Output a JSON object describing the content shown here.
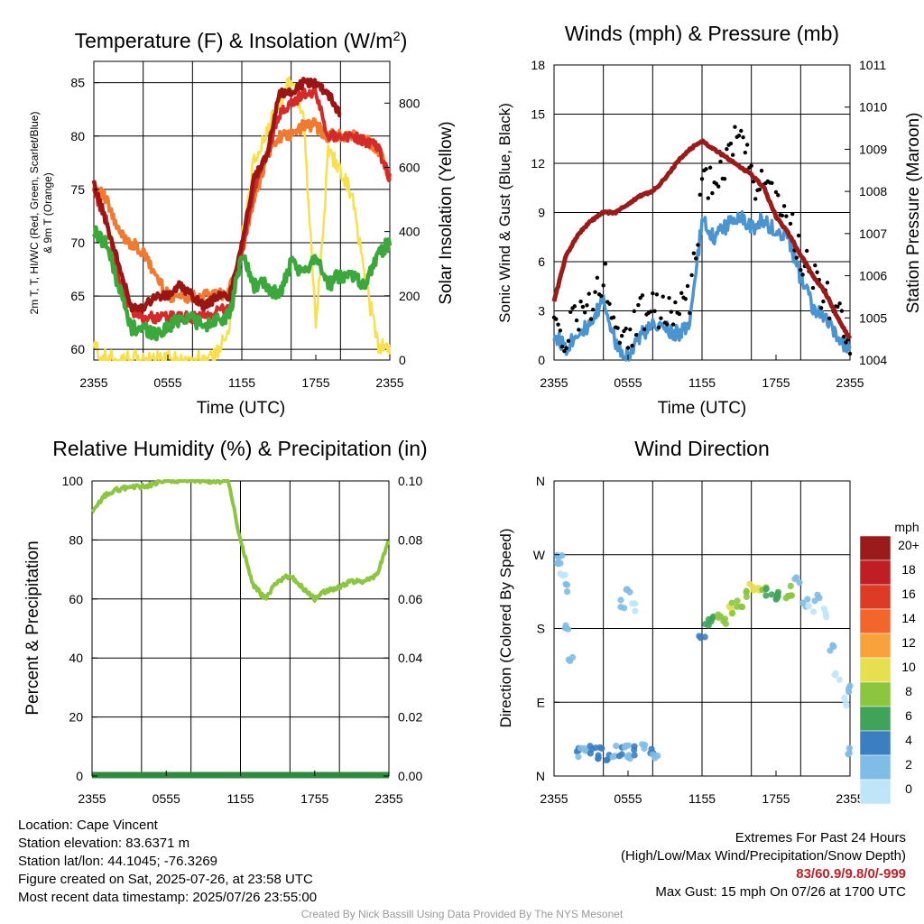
{
  "panels": {
    "temp": {
      "title": "Temperature (F) & Insolation (W/m",
      "title_sup": "2",
      "title_end": ")",
      "ylabel_line1": "2m T, T, HI/WC (Red, Green, Scarlet/Blue)",
      "ylabel_line2": "& 9m T (Orange)",
      "y2label": "Solar Insolation (Yellow)",
      "xlabel": "Time (UTC)"
    },
    "wind": {
      "title": "Winds (mph) & Pressure (mb)",
      "ylabel": "Sonic Wind & Gust (Blue, Black)",
      "y2label": "Station Pressure (Maroon)",
      "xlabel": "Time (UTC)"
    },
    "rh": {
      "title": "Relative Humidity (%) & Precipitation (in)",
      "ylabel": "Percent & Precipitation"
    },
    "dir": {
      "title": "Wind Direction",
      "ylabel": "Direction (Colored By Speed)",
      "legend_title": "mph"
    }
  },
  "info": {
    "location": "Location: Cape Vincent",
    "elevation": "Station elevation: 83.6371 m",
    "latlon": "Station lat/lon: 44.1045; -76.3269",
    "created": "Figure created on Sat, 2025-07-26, at 23:58 UTC",
    "recent": "Most recent data timestamp: 2025/07/26 23:55:00",
    "extremes_title": "Extremes For Past 24 Hours",
    "extremes_subtitle": "(High/Low/Max Wind/Precipitation/Snow Depth)",
    "extremes_values": "83/60.9/9.8/0/-999",
    "max_gust": "Max Gust: 15 mph On 07/26 at 1700 UTC",
    "credit": "Created By Nick Bassill Using Data Provided By The NYS Mesonet"
  },
  "colors": {
    "temp2m": "#9b1515",
    "temp9m": "#f07a30",
    "dewpoint": "#3aa83a",
    "heatindex": "#d42a2a",
    "solar": "#f8e04a",
    "wind": "#4a94d0",
    "gust": "#000000",
    "pressure": "#9b1b1b",
    "rh": "#8cc63f",
    "precip": "#2e8b3e"
  },
  "speed_legend": [
    {
      "label": "20+",
      "color": "#9b1b1b"
    },
    {
      "label": "18",
      "color": "#be1e24"
    },
    {
      "label": "16",
      "color": "#de3b27"
    },
    {
      "label": "14",
      "color": "#f2662b"
    },
    {
      "label": "12",
      "color": "#f9a23b"
    },
    {
      "label": "10",
      "color": "#e6df4f"
    },
    {
      "label": "8",
      "color": "#8cc63f"
    },
    {
      "label": "6",
      "color": "#3fa35a"
    },
    {
      "label": "4",
      "color": "#3a7fc1"
    },
    {
      "label": "2",
      "color": "#7fbde6"
    },
    {
      "label": "0",
      "color": "#bfe6f8"
    }
  ],
  "chart_data": [
    {
      "type": "line",
      "title": "Temperature (F) & Insolation (W/m2)",
      "xlabel": "Time (UTC)",
      "ylabel": "2m T, Td, HI/WC (Red, Green, Scarlet/Blue) & 9m T (Orange)",
      "y2label": "Solar Insolation (Yellow)",
      "x_ticks": [
        "2355",
        "0555",
        "1155",
        "1755",
        "2355"
      ],
      "x_hours": [
        0,
        2,
        4,
        6,
        8,
        10,
        12,
        14,
        16,
        18,
        20,
        22,
        24
      ],
      "ylim": [
        59,
        87
      ],
      "y_ticks": [
        60,
        65,
        70,
        75,
        80,
        85
      ],
      "y2lim": [
        0,
        930
      ],
      "y2_ticks": [
        0,
        200,
        400,
        600,
        800
      ],
      "series": [
        {
          "name": "2m T",
          "x": [
            0,
            1,
            2,
            3,
            4,
            5,
            6,
            7,
            8,
            9,
            10,
            11,
            12,
            13,
            14,
            15,
            16,
            17,
            18,
            19,
            20,
            21,
            22,
            23,
            24
          ],
          "values": [
            75.5,
            72,
            68,
            64,
            64,
            65,
            65,
            66,
            65,
            64,
            65,
            65,
            70,
            76,
            78,
            84,
            84,
            85,
            85,
            84,
            82,
            null,
            null,
            null,
            null
          ]
        },
        {
          "name": "9m T",
          "x": [
            0,
            1,
            2,
            3,
            4,
            5,
            6,
            7,
            8,
            9,
            10,
            11,
            12,
            13,
            14,
            15,
            16,
            17,
            18,
            19,
            20,
            21,
            22,
            23,
            24
          ],
          "values": [
            75.5,
            74,
            71,
            70,
            69,
            67,
            65,
            65,
            65,
            65,
            65,
            65.5,
            69,
            74,
            78,
            80,
            80,
            81,
            81,
            80,
            80,
            80,
            79.5,
            79,
            76
          ]
        },
        {
          "name": "Heat Index",
          "x": [
            0,
            1,
            2,
            3,
            4,
            5,
            6,
            7,
            8,
            9,
            10,
            11,
            12,
            13,
            14,
            15,
            16,
            17,
            18,
            19,
            20,
            21,
            22,
            23,
            24
          ],
          "values": [
            75,
            72,
            67,
            63.5,
            63,
            63,
            63,
            63,
            63,
            63,
            63.5,
            64,
            69,
            75,
            78,
            82,
            83,
            84,
            84,
            80,
            80,
            80,
            79.5,
            79,
            76
          ]
        },
        {
          "name": "Dewpoint",
          "x": [
            0,
            1,
            2,
            3,
            4,
            5,
            6,
            7,
            8,
            9,
            10,
            11,
            12,
            13,
            14,
            15,
            16,
            17,
            18,
            19,
            20,
            21,
            22,
            23,
            24
          ],
          "values": [
            71,
            70,
            66,
            62,
            62,
            61.5,
            62,
            63,
            63,
            62,
            63,
            63,
            69,
            66,
            66,
            65,
            68,
            67,
            69,
            66,
            67,
            67,
            66,
            69,
            70
          ]
        },
        {
          "name": "Solar",
          "axis": "y2",
          "x": [
            0,
            1,
            2,
            3,
            4,
            5,
            6,
            7,
            8,
            9,
            10,
            11,
            12,
            13,
            14,
            15,
            16,
            17,
            18,
            19,
            20,
            21,
            22,
            23,
            24
          ],
          "values": [
            40,
            0,
            0,
            0,
            0,
            0,
            0,
            0,
            0,
            0,
            20,
            120,
            370,
            620,
            700,
            800,
            880,
            760,
            100,
            640,
            600,
            500,
            250,
            50,
            30
          ]
        }
      ]
    },
    {
      "type": "line",
      "title": "Winds (mph) & Pressure (mb)",
      "xlabel": "Time (UTC)",
      "ylabel": "Sonic Wind & Gust (Blue, Black)",
      "y2label": "Station Pressure (Maroon)",
      "x_ticks": [
        "2355",
        "0555",
        "1155",
        "1755",
        "2355"
      ],
      "ylim": [
        0,
        18
      ],
      "y_ticks": [
        0,
        3,
        6,
        9,
        12,
        15,
        18
      ],
      "y2lim": [
        1004,
        1011
      ],
      "y2_ticks": [
        1004,
        1005,
        1006,
        1007,
        1008,
        1009,
        1010,
        1011
      ],
      "series": [
        {
          "name": "Wind",
          "x": [
            0,
            1,
            2,
            3,
            4,
            5,
            6,
            7,
            8,
            9,
            10,
            11,
            12,
            13,
            14,
            15,
            16,
            17,
            18,
            19,
            20,
            21,
            22,
            23,
            24
          ],
          "values": [
            1.5,
            0.8,
            1.8,
            2.0,
            3.8,
            1.0,
            0.3,
            1.5,
            2.0,
            2.0,
            1.6,
            2.0,
            8.5,
            7.5,
            8.2,
            8.8,
            8.0,
            8.6,
            7.8,
            7.5,
            5.0,
            3.2,
            2.5,
            1.2,
            0.6
          ]
        },
        {
          "name": "Gust",
          "x": [
            0,
            1,
            2,
            3,
            4,
            5,
            6,
            7,
            8,
            9,
            10,
            11,
            12,
            13,
            14,
            15,
            16,
            17,
            18,
            19,
            20,
            21,
            22,
            23,
            24
          ],
          "values": [
            2.5,
            1.5,
            2.8,
            3.5,
            5.3,
            2.0,
            1.0,
            2.8,
            3.0,
            3.0,
            2.8,
            3.5,
            10.5,
            11.5,
            12.0,
            14.5,
            11.0,
            10.5,
            10.0,
            8.5,
            6.5,
            5.0,
            4.0,
            2.5,
            1.2
          ]
        },
        {
          "name": "Pressure",
          "axis": "y2",
          "x": [
            0,
            1,
            2,
            3,
            4,
            5,
            6,
            7,
            8,
            9,
            10,
            11,
            12,
            13,
            14,
            15,
            16,
            17,
            18,
            19,
            20,
            21,
            22,
            23,
            24
          ],
          "values": [
            1005.4,
            1006.5,
            1007.0,
            1007.3,
            1007.5,
            1007.5,
            1007.7,
            1007.9,
            1008.0,
            1008.3,
            1008.7,
            1009.0,
            1009.2,
            1009.0,
            1008.8,
            1008.6,
            1008.4,
            1008.1,
            1007.4,
            1007.0,
            1006.5,
            1006.0,
            1005.6,
            1005.0,
            1004.5
          ]
        }
      ]
    },
    {
      "type": "line",
      "title": "Relative Humidity (%) & Precipitation (in)",
      "ylabel": "Percent & Precipitation",
      "x_ticks": [
        "2355",
        "0555",
        "1155",
        "1755",
        "2355"
      ],
      "ylim": [
        0,
        100
      ],
      "y_ticks": [
        0,
        20,
        40,
        60,
        80,
        100
      ],
      "y2lim": [
        0,
        0.1
      ],
      "y2_ticks": [
        "0.00",
        "0.02",
        "0.04",
        "0.06",
        "0.08",
        "0.10"
      ],
      "series": [
        {
          "name": "RH",
          "x": [
            0,
            1,
            2,
            3,
            4,
            5,
            6,
            7,
            8,
            9,
            10,
            11,
            12,
            13,
            14,
            15,
            16,
            17,
            18,
            19,
            20,
            21,
            22,
            23,
            24
          ],
          "values": [
            89,
            95,
            97,
            98,
            98,
            99,
            100,
            100,
            100,
            100,
            100,
            100,
            80,
            65,
            60,
            66,
            68,
            64,
            60,
            63,
            64,
            66,
            66,
            68,
            80
          ]
        },
        {
          "name": "Precipitation",
          "axis": "y2",
          "x": [
            0,
            24
          ],
          "values": [
            0,
            0
          ]
        }
      ]
    },
    {
      "type": "scatter",
      "title": "Wind Direction",
      "ylabel": "Direction (Colored By Speed)",
      "x_ticks": [
        "2355",
        "0555",
        "1155",
        "1755",
        "2355"
      ],
      "y_ticks": [
        "N",
        "E",
        "S",
        "W",
        "N"
      ],
      "ylim": [
        0,
        360
      ],
      "legend": "right",
      "points_hour_deg_speed": [
        [
          0.4,
          270,
          1
        ],
        [
          0.5,
          260,
          1
        ],
        [
          0.7,
          240,
          0
        ],
        [
          0.9,
          230,
          1
        ],
        [
          1.1,
          185,
          2
        ],
        [
          1.3,
          140,
          1
        ],
        [
          2.0,
          35,
          4
        ],
        [
          2.2,
          30,
          2
        ],
        [
          2.6,
          25,
          2
        ],
        [
          3.0,
          30,
          3
        ],
        [
          3.4,
          28,
          4
        ],
        [
          3.8,
          30,
          3
        ],
        [
          4.4,
          25,
          4
        ],
        [
          4.8,
          30,
          2
        ],
        [
          5.3,
          28,
          4
        ],
        [
          5.8,
          32,
          1
        ],
        [
          6.2,
          25,
          2
        ],
        [
          6.7,
          30,
          3
        ],
        [
          7.3,
          35,
          2
        ],
        [
          7.8,
          30,
          3
        ],
        [
          8.2,
          28,
          1
        ],
        [
          5.6,
          210,
          1
        ],
        [
          5.9,
          230,
          1
        ],
        [
          6.4,
          205,
          0
        ],
        [
          12.0,
          175,
          3
        ],
        [
          12.4,
          185,
          5
        ],
        [
          12.8,
          190,
          6
        ],
        [
          13.3,
          195,
          7
        ],
        [
          13.8,
          190,
          8
        ],
        [
          14.2,
          200,
          9
        ],
        [
          14.6,
          205,
          7
        ],
        [
          15.1,
          210,
          8
        ],
        [
          15.6,
          225,
          8
        ],
        [
          16.1,
          228,
          10
        ],
        [
          16.5,
          226,
          9
        ],
        [
          17.0,
          224,
          7
        ],
        [
          17.4,
          225,
          6
        ],
        [
          17.9,
          222,
          6
        ],
        [
          18.3,
          222,
          6
        ],
        [
          18.8,
          220,
          7
        ],
        [
          19.2,
          225,
          7
        ],
        [
          19.7,
          240,
          2
        ],
        [
          20.3,
          210,
          1
        ],
        [
          20.8,
          205,
          0
        ],
        [
          21.3,
          215,
          1
        ],
        [
          21.9,
          200,
          0
        ],
        [
          22.5,
          160,
          1
        ],
        [
          23.0,
          120,
          0
        ],
        [
          23.5,
          90,
          0
        ],
        [
          23.8,
          30,
          1
        ],
        [
          24.0,
          105,
          2
        ]
      ]
    }
  ]
}
